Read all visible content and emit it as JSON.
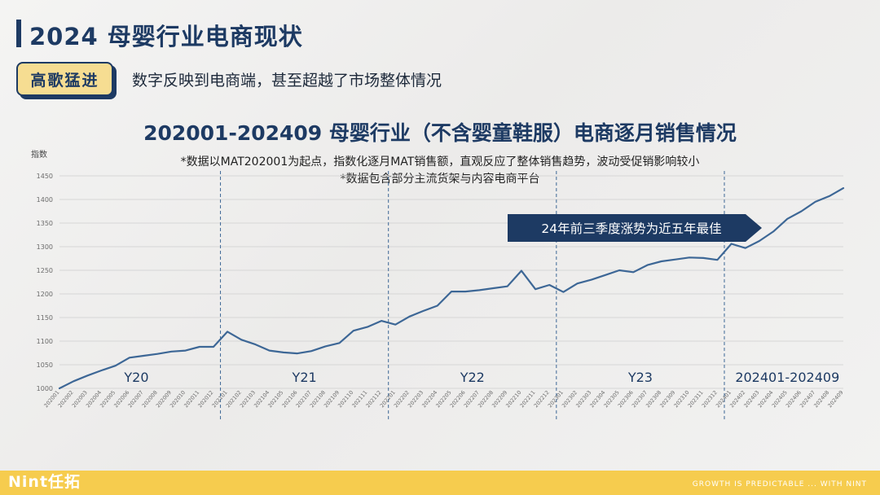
{
  "header": {
    "title": "2024 母婴行业电商现状",
    "badge": "高歌猛进",
    "subtitle": "数字反映到电商端，甚至超越了市场整体情况"
  },
  "chart_data": {
    "type": "line",
    "title": "202001-202409 母婴行业（不含婴童鞋服）电商逐月销售情况",
    "notes": [
      "*数据以MAT202001为起点，指数化逐月MAT销售额，直观反应了整体销售趋势，波动受促销影响较小",
      "*数据包含部分主流货架与内容电商平台"
    ],
    "ylabel": "指数",
    "ylim": [
      1000,
      1450
    ],
    "yticks": [
      1000,
      1050,
      1100,
      1150,
      1200,
      1250,
      1300,
      1350,
      1400,
      1450
    ],
    "grid": true,
    "x": [
      "202001",
      "202002",
      "202003",
      "202004",
      "202005",
      "202006",
      "202007",
      "202008",
      "202009",
      "202010",
      "202011",
      "202012",
      "202101",
      "202102",
      "202103",
      "202104",
      "202105",
      "202106",
      "202107",
      "202108",
      "202109",
      "202110",
      "202111",
      "202112",
      "202201",
      "202202",
      "202203",
      "202204",
      "202205",
      "202206",
      "202207",
      "202208",
      "202209",
      "202210",
      "202211",
      "202212",
      "202301",
      "202302",
      "202303",
      "202304",
      "202305",
      "202306",
      "202307",
      "202308",
      "202309",
      "202310",
      "202311",
      "202312",
      "202401",
      "202402",
      "202403",
      "202404",
      "202405",
      "202406",
      "202407",
      "202408",
      "202409"
    ],
    "series": [
      {
        "values": [
          1000,
          1015,
          1027,
          1038,
          1048,
          1065,
          1069,
          1073,
          1078,
          1080,
          1088,
          1088,
          1120,
          1103,
          1093,
          1080,
          1076,
          1074,
          1079,
          1089,
          1096,
          1122,
          1130,
          1143,
          1135,
          1152,
          1164,
          1175,
          1205,
          1205,
          1208,
          1212,
          1216,
          1249,
          1210,
          1219,
          1204,
          1222,
          1230,
          1240,
          1250,
          1246,
          1261,
          1269,
          1273,
          1277,
          1276,
          1272,
          1306,
          1297,
          1312,
          1332,
          1359,
          1375,
          1395,
          1407,
          1424
        ]
      }
    ],
    "color": "#3d6796",
    "segments": [
      {
        "label": "Y20",
        "from": "202001",
        "to": "202012"
      },
      {
        "label": "Y21",
        "from": "202101",
        "to": "202112"
      },
      {
        "label": "Y22",
        "from": "202201",
        "to": "202212"
      },
      {
        "label": "Y23",
        "from": "202301",
        "to": "202312"
      },
      {
        "label": "202401-202409",
        "from": "202401",
        "to": "202409"
      }
    ],
    "annotation": "24年前三季度涨势为近五年最佳"
  },
  "footer": {
    "logo": "Nint任拓",
    "slogan": "GROWTH IS PREDICTABLE ... WITH NINT"
  },
  "colors": {
    "navy": "#1d3a63",
    "line": "#3d6796",
    "accent": "#f6cc4e"
  }
}
